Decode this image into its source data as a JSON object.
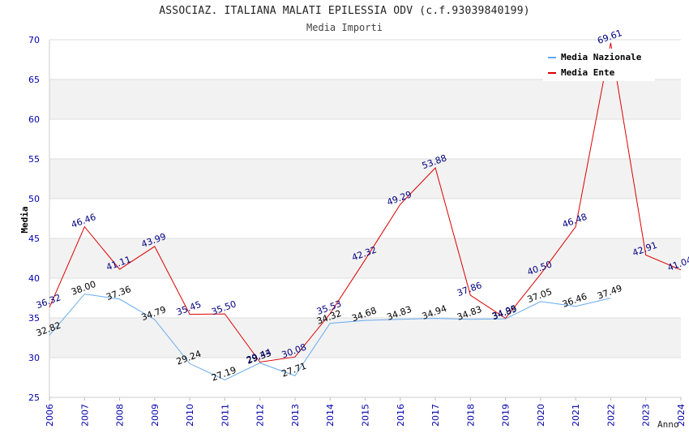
{
  "title": "ASSOCIAZ. ITALIANA MALATI EPILESSIA ODV (c.f.93039840199)",
  "subtitle": "Media Importi",
  "colors": {
    "nazionale": "#66aaee",
    "ente": "#dd0000",
    "axis_text": "#0000aa",
    "band": "#f2f2f2"
  },
  "chart_data": {
    "type": "line",
    "title": "ASSOCIAZ. ITALIANA MALATI EPILESSIA ODV (c.f.93039840199)",
    "subtitle": "Media Importi",
    "xlabel": "Anno",
    "ylabel": "Media",
    "ylim": [
      25,
      70
    ],
    "yticks": [
      25,
      30,
      35,
      40,
      45,
      50,
      55,
      60,
      65,
      70
    ],
    "grid": true,
    "legend_position": "top-right",
    "categories": [
      "2006",
      "2007",
      "2008",
      "2009",
      "2010",
      "2011",
      "2012",
      "2013",
      "2014",
      "2015",
      "2016",
      "2017",
      "2018",
      "2019",
      "2020",
      "2021",
      "2022",
      "2023",
      "2024"
    ],
    "series": [
      {
        "name": "Media Nazionale",
        "values": [
          32.82,
          38.0,
          37.36,
          34.79,
          29.24,
          27.19,
          29.33,
          27.71,
          34.32,
          34.68,
          34.83,
          34.94,
          34.83,
          34.89,
          37.05,
          36.46,
          37.49,
          null,
          null
        ],
        "labels": [
          "32.82",
          "38.00",
          "37.36",
          "34.79",
          "29.24",
          "27.19",
          "29.33",
          "27.71",
          "34.32",
          "34.68",
          "34.83",
          "34.94",
          "34.83",
          "34.89",
          "37.05",
          "36.46",
          "37.49",
          null,
          null
        ]
      },
      {
        "name": "Media Ente",
        "values": [
          36.32,
          46.46,
          41.11,
          43.99,
          35.45,
          35.5,
          29.44,
          30.08,
          35.53,
          42.32,
          49.29,
          53.88,
          37.86,
          34.95,
          40.5,
          46.48,
          69.61,
          42.91,
          41.04
        ],
        "labels": [
          "36.32",
          "46.46",
          "41.11",
          "43.99",
          "35.45",
          "35.50",
          "29.44",
          "30.08",
          "35.53",
          "42.32",
          "49.29",
          "53.88",
          "37.86",
          "34.95",
          "40.50",
          "46.48",
          "69.61",
          "42.91",
          "41.04"
        ]
      }
    ]
  }
}
